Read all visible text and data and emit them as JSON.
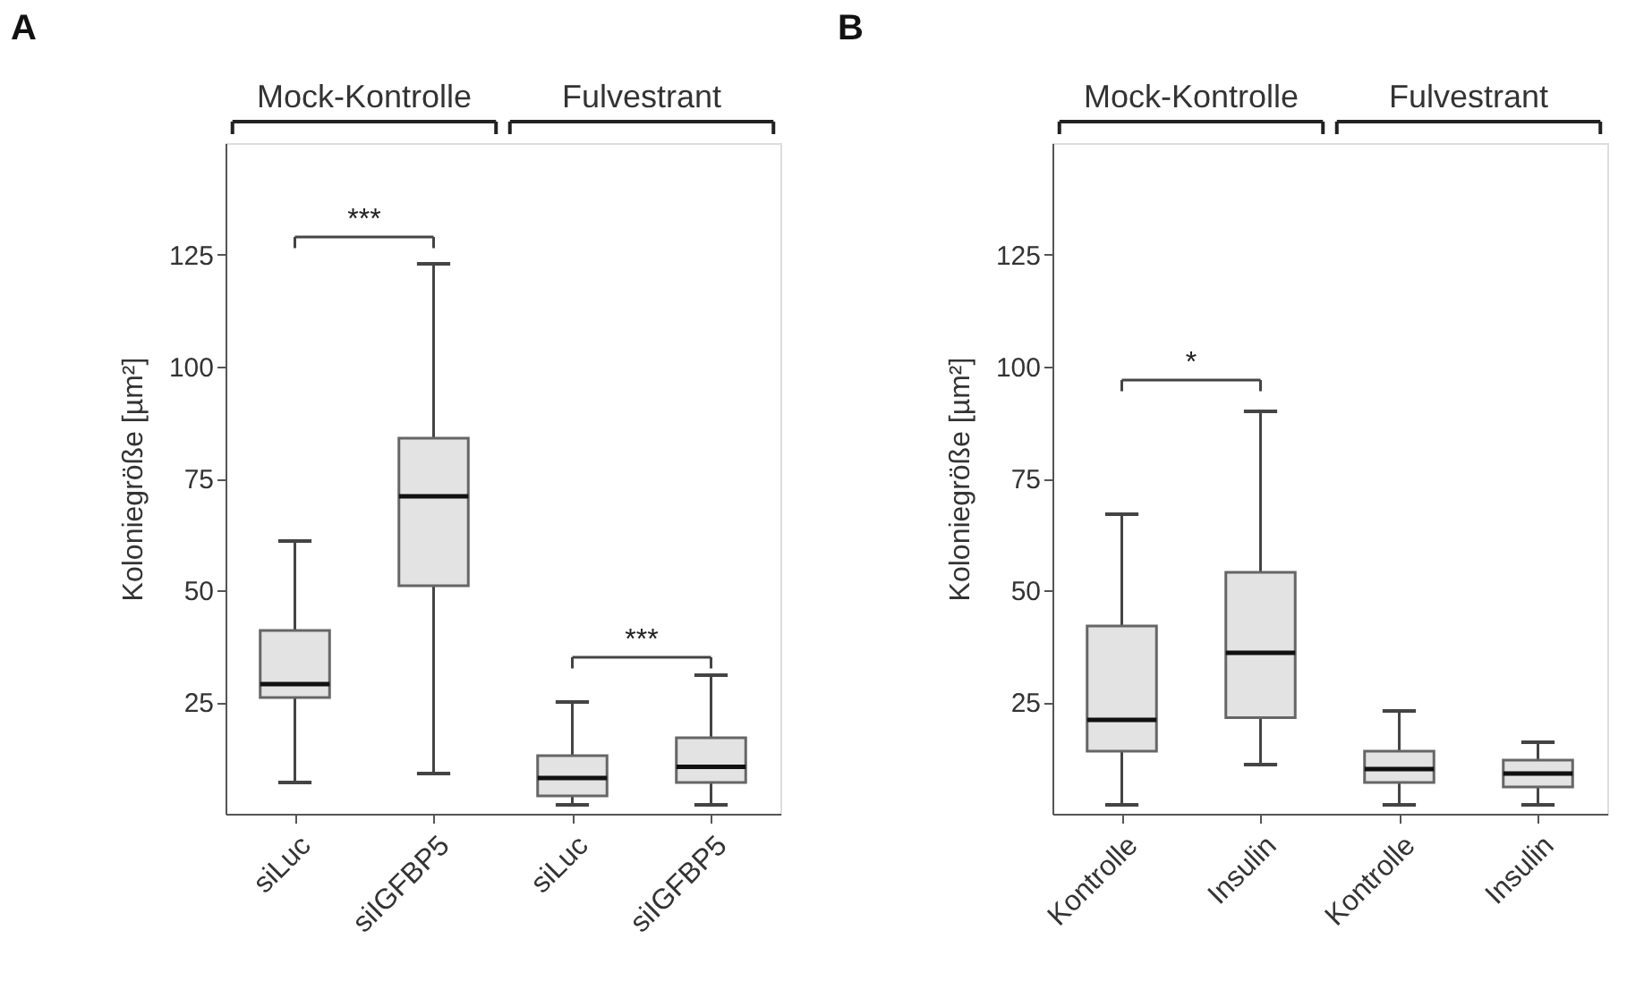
{
  "chart_data": [
    {
      "type": "box",
      "title": "A",
      "ylabel": "Koloniegröße [µm²]",
      "categories": [
        "siLuc",
        "siIGFBP5",
        "siLuc",
        "siIGFBP5"
      ],
      "series": [
        {
          "color": "#e3e3e3",
          "boxes": [
            {
              "low": 7,
              "q1": 26,
              "median": 29,
              "q3": 41,
              "high": 61
            },
            {
              "low": 9,
              "q1": 51,
              "median": 71,
              "q3": 84,
              "high": 123
            },
            {
              "low": 2,
              "q1": 4,
              "median": 8,
              "q3": 13,
              "high": 25
            },
            {
              "low": 2,
              "q1": 7,
              "median": 10.5,
              "q3": 17,
              "high": 31
            }
          ]
        }
      ],
      "ylim": [
        0,
        150
      ],
      "yticks": [
        25,
        50,
        75,
        100,
        125
      ],
      "grid": false,
      "annotations": [
        "Mock-Kontrolle",
        "Fulvestrant",
        "***",
        "***"
      ]
    },
    {
      "type": "box",
      "title": "B",
      "ylabel": "Koloniegröße [µm²]",
      "categories": [
        "Kontrolle",
        "Insulin",
        "Kontrolle",
        "Insulin"
      ],
      "series": [
        {
          "color": "#e3e3e3",
          "boxes": [
            {
              "low": 2,
              "q1": 14,
              "median": 21,
              "q3": 42,
              "high": 67
            },
            {
              "low": 11,
              "q1": 21.5,
              "median": 36,
              "q3": 54,
              "high": 90
            },
            {
              "low": 2,
              "q1": 7,
              "median": 10,
              "q3": 14,
              "high": 23
            },
            {
              "low": 2,
              "q1": 6,
              "median": 9,
              "q3": 12,
              "high": 16
            }
          ]
        }
      ],
      "ylim": [
        0,
        150
      ],
      "yticks": [
        25,
        50,
        75,
        100,
        125
      ],
      "grid": false,
      "annotations": [
        "Mock-Kontrolle",
        "Fulvestrant",
        "*"
      ]
    }
  ]
}
